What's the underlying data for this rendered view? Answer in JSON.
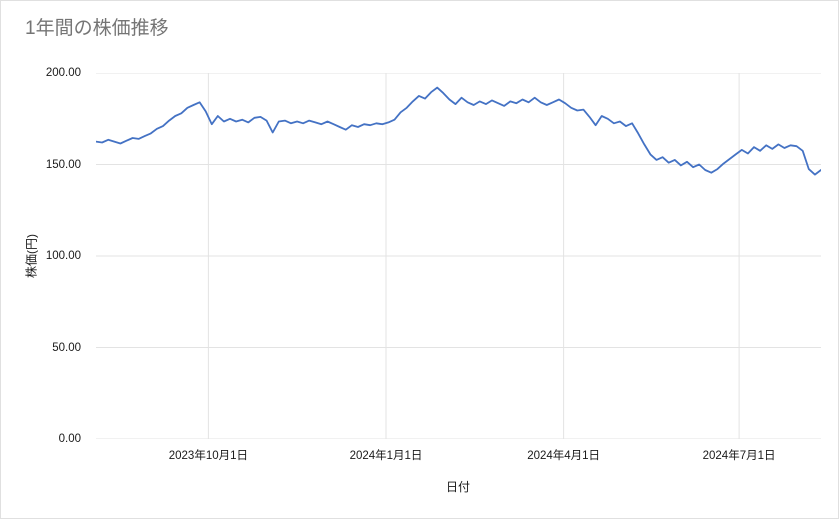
{
  "chart_data": {
    "type": "line",
    "title": "1年間の株価推移",
    "xlabel": "日付",
    "ylabel": "株価(円)",
    "ylim": [
      0,
      200
    ],
    "grid": true,
    "legend": "none",
    "y_ticks": [
      {
        "label": "200.00",
        "value": 200
      },
      {
        "label": "150.00",
        "value": 150
      },
      {
        "label": "100.00",
        "value": 100
      },
      {
        "label": "50.00",
        "value": 50
      },
      {
        "label": "0.00",
        "value": 0
      }
    ],
    "x_ticks": [
      {
        "label": "2023年10月1日",
        "pos": 0.155
      },
      {
        "label": "2024年1月1日",
        "pos": 0.4
      },
      {
        "label": "2024年4月1日",
        "pos": 0.645
      },
      {
        "label": "2024年7月1日",
        "pos": 0.887
      }
    ],
    "series": [
      {
        "name": "株価(円)",
        "color": "#4472c4",
        "values": [
          162.5,
          162,
          163.5,
          162.5,
          161.5,
          163,
          164.5,
          164,
          165.5,
          167,
          169.5,
          171,
          174,
          176.5,
          178,
          181,
          182.5,
          184,
          179,
          172,
          176.5,
          173.5,
          175,
          173.5,
          174.5,
          173,
          175.5,
          176,
          174,
          167.5,
          173.5,
          174,
          172.5,
          173.5,
          172.5,
          174,
          173,
          172,
          173.5,
          172,
          170.5,
          169,
          171.5,
          170.5,
          172,
          171.5,
          172.5,
          172,
          173,
          174.5,
          178.5,
          181,
          184.5,
          187.5,
          186,
          189.5,
          192,
          189,
          185.5,
          183,
          186.5,
          184,
          182.5,
          184.5,
          183,
          185,
          183.5,
          182,
          184.5,
          183.5,
          185.5,
          184,
          186.5,
          184,
          182.5,
          184,
          185.5,
          183.5,
          181,
          179.5,
          180,
          176,
          171.5,
          176.5,
          175,
          172.5,
          173.5,
          171,
          172.5,
          167,
          161,
          155.5,
          152.5,
          154,
          151,
          152.5,
          149.5,
          151.5,
          148.5,
          150,
          147,
          145.5,
          147.5,
          150.5,
          153,
          155.5,
          158,
          156,
          159.5,
          157.5,
          160.5,
          158.5,
          161,
          159,
          160.5,
          160,
          157.5,
          147.5,
          144.5,
          147
        ]
      }
    ]
  }
}
